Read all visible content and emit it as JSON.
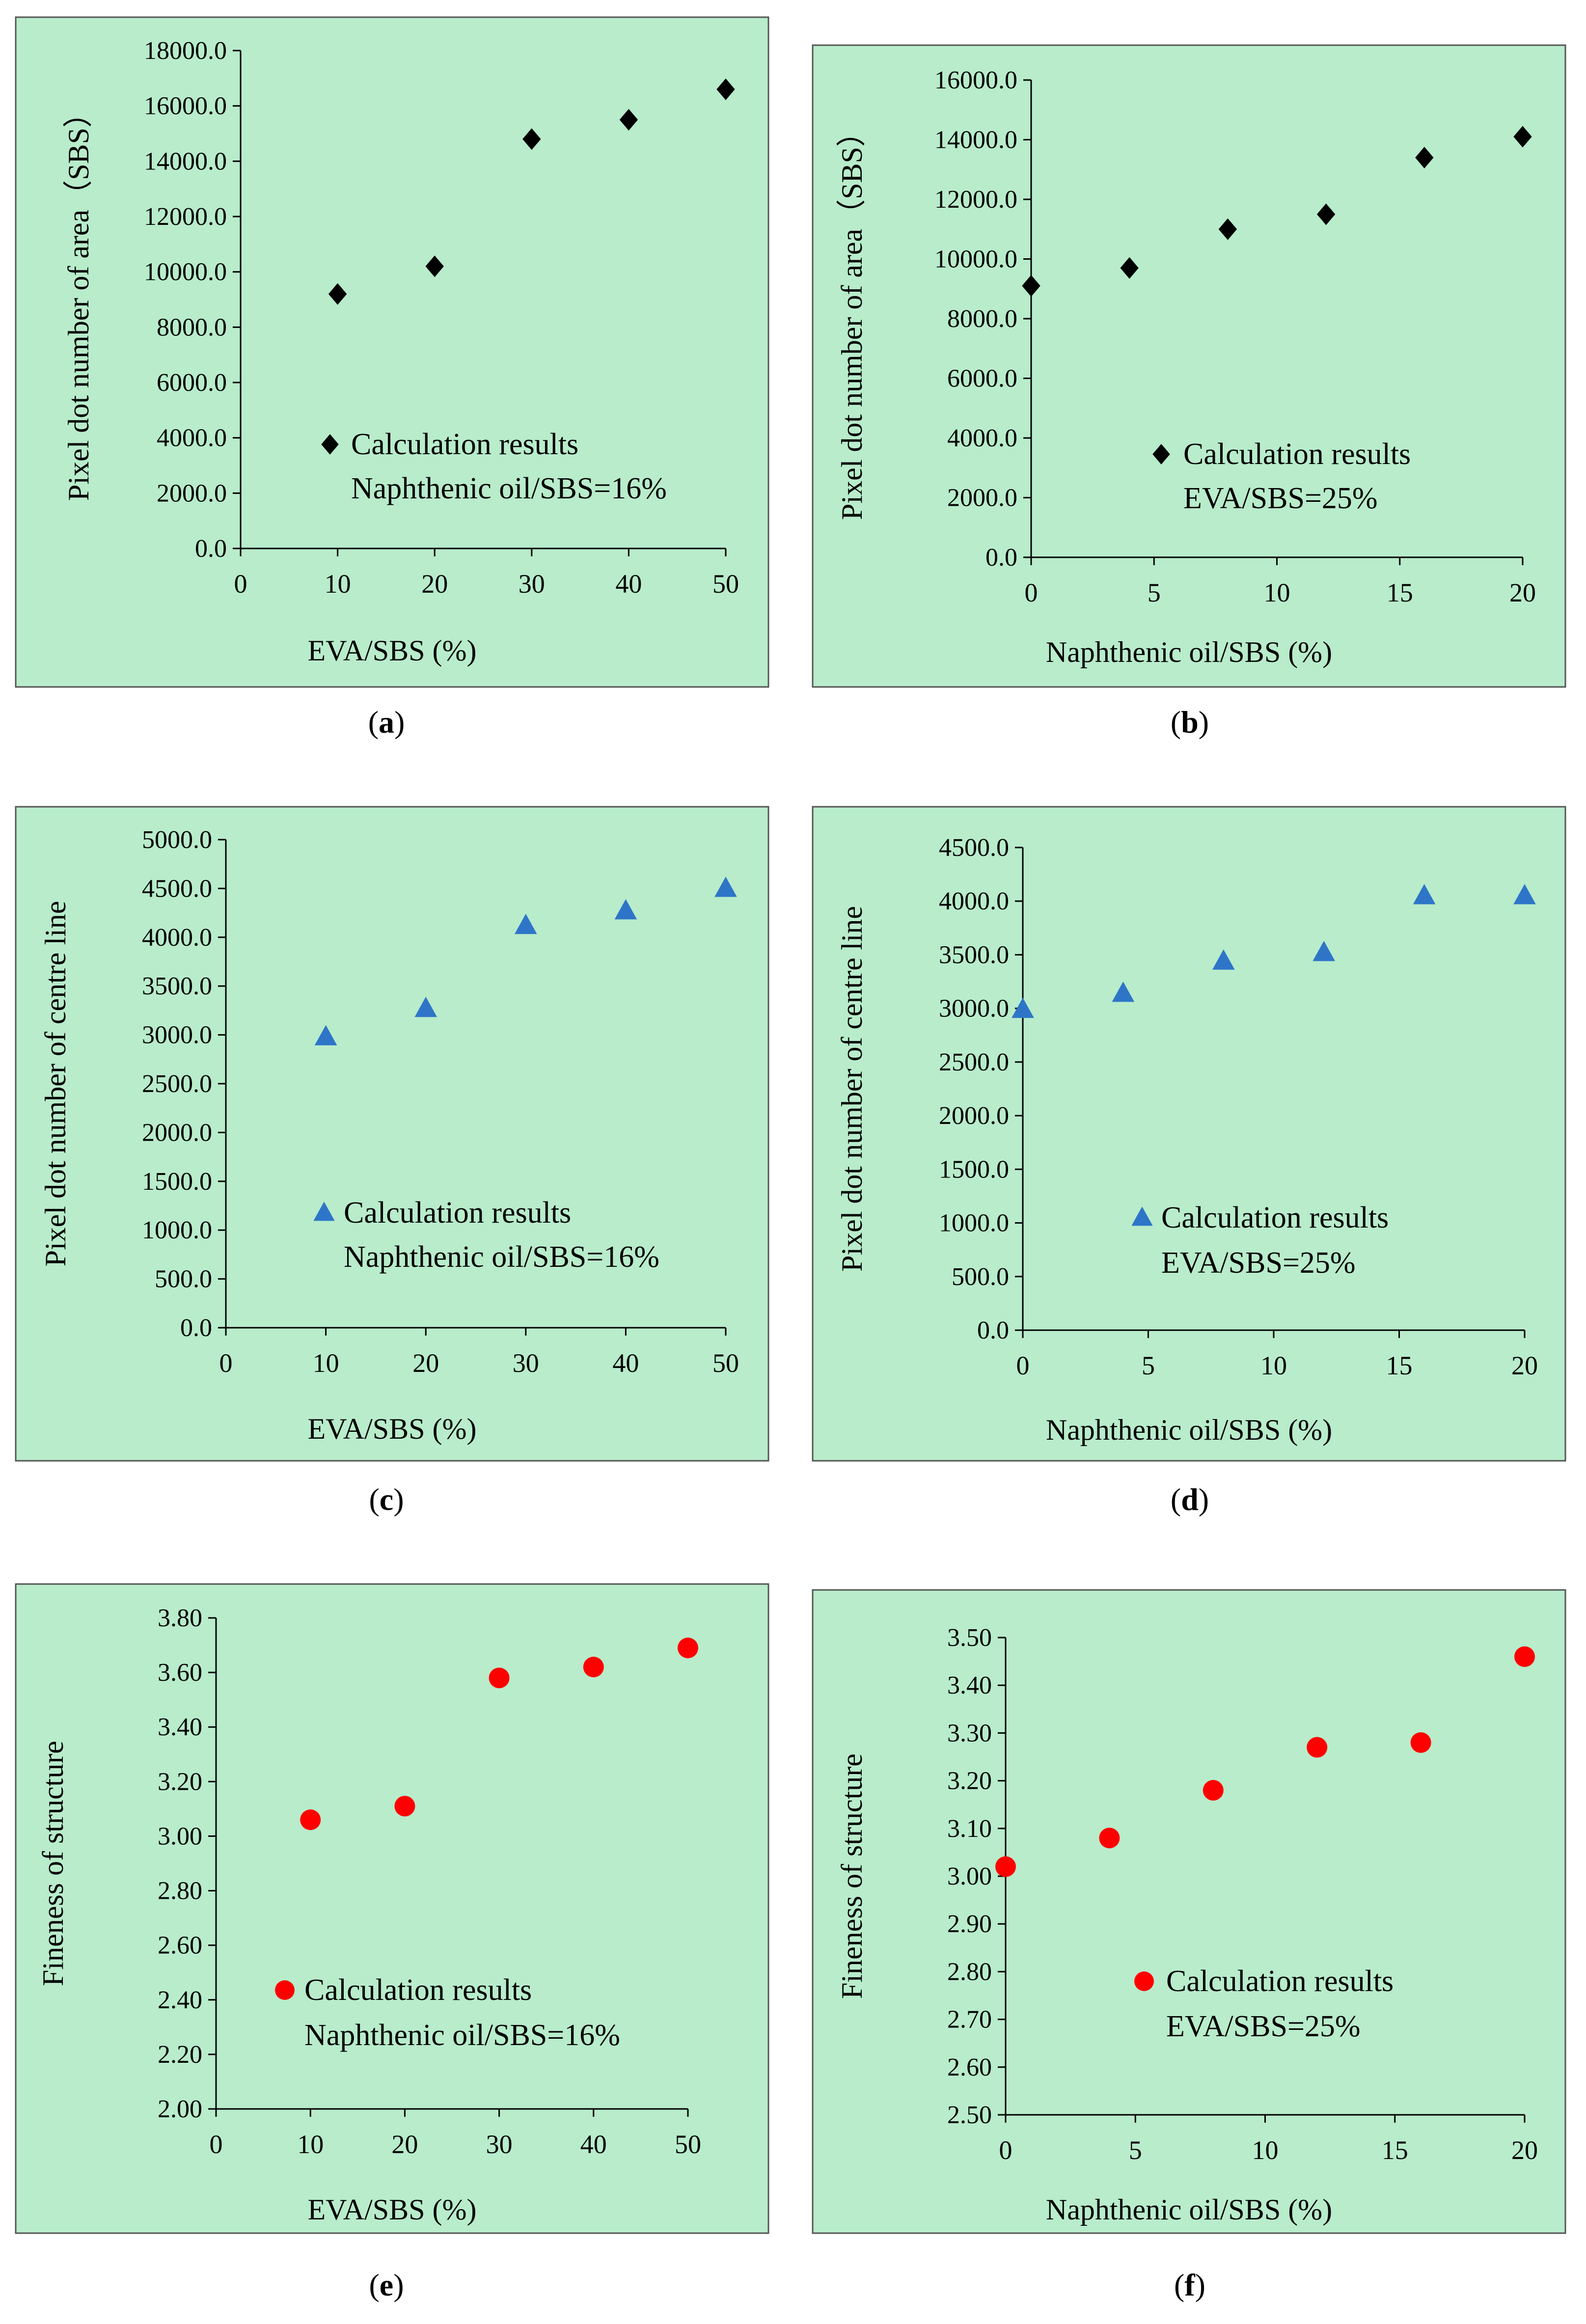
{
  "figure": {
    "panel_bg": "#b8eccb",
    "panel_border": "#555555",
    "axis_color": "#000000"
  },
  "chart_data": [
    {
      "id": "a",
      "type": "scatter",
      "caption": "a",
      "xlabel": "EVA/SBS (%)",
      "ylabel": "Pixel dot number of area（SBS）",
      "xlim": [
        0,
        50
      ],
      "ylim": [
        0,
        18000
      ],
      "xticks": [
        0,
        10,
        20,
        30,
        40,
        50
      ],
      "yticks": [
        0,
        2000,
        4000,
        6000,
        8000,
        10000,
        12000,
        14000,
        16000,
        18000
      ],
      "ytick_labels": [
        "0.0",
        "2000.0",
        "4000.0",
        "6000.0",
        "8000.0",
        "10000.0",
        "12000.0",
        "14000.0",
        "16000.0",
        "18000.0"
      ],
      "marker": "diamond",
      "color": "#000000",
      "legend_label": "Calculation results",
      "legend_note": "Naphthenic oil/SBS=16%",
      "series": [
        {
          "name": "Calculation results",
          "x": [
            10,
            20,
            30,
            40,
            50
          ],
          "y": [
            9200,
            10200,
            14800,
            15500,
            16600
          ]
        }
      ]
    },
    {
      "id": "b",
      "type": "scatter",
      "caption": "b",
      "xlabel": "Naphthenic oil/SBS (%)",
      "ylabel": "Pixel dot number of area（SBS）",
      "xlim": [
        0,
        20
      ],
      "ylim": [
        0,
        16000
      ],
      "xticks": [
        0,
        5,
        10,
        15,
        20
      ],
      "yticks": [
        0,
        2000,
        4000,
        6000,
        8000,
        10000,
        12000,
        14000,
        16000
      ],
      "ytick_labels": [
        "0.0",
        "2000.0",
        "4000.0",
        "6000.0",
        "8000.0",
        "10000.0",
        "12000.0",
        "14000.0",
        "16000.0"
      ],
      "marker": "diamond",
      "color": "#000000",
      "legend_label": "Calculation results",
      "legend_note": "EVA/SBS=25%",
      "series": [
        {
          "name": "Calculation results",
          "x": [
            0,
            4,
            8,
            12,
            16,
            20
          ],
          "y": [
            9100,
            9700,
            11000,
            11500,
            13400,
            14100
          ]
        }
      ]
    },
    {
      "id": "c",
      "type": "scatter",
      "caption": "c",
      "xlabel": "EVA/SBS (%)",
      "ylabel": "Pixel dot number of centre line",
      "xlim": [
        0,
        50
      ],
      "ylim": [
        0,
        5000
      ],
      "xticks": [
        0,
        10,
        20,
        30,
        40,
        50
      ],
      "yticks": [
        0,
        500,
        1000,
        1500,
        2000,
        2500,
        3000,
        3500,
        4000,
        4500,
        5000
      ],
      "ytick_labels": [
        "0.0",
        "500.0",
        "1000.0",
        "1500.0",
        "2000.0",
        "2500.0",
        "3000.0",
        "3500.0",
        "4000.0",
        "4500.0",
        "5000.0"
      ],
      "marker": "triangle",
      "color": "#2e75c8",
      "legend_label": "Calculation results",
      "legend_note": "Naphthenic oil/SBS=16%",
      "series": [
        {
          "name": "Calculation results",
          "x": [
            10,
            20,
            30,
            40,
            50
          ],
          "y": [
            2980,
            3270,
            4120,
            4270,
            4500
          ]
        }
      ]
    },
    {
      "id": "d",
      "type": "scatter",
      "caption": "d",
      "xlabel": "Naphthenic oil/SBS (%)",
      "ylabel": "Pixel dot number of centre line",
      "xlim": [
        0,
        20
      ],
      "ylim": [
        0,
        4500
      ],
      "xticks": [
        0,
        5,
        10,
        15,
        20
      ],
      "yticks": [
        0,
        500,
        1000,
        1500,
        2000,
        2500,
        3000,
        3500,
        4000,
        4500
      ],
      "ytick_labels": [
        "0.0",
        "500.0",
        "1000.0",
        "1500.0",
        "2000.0",
        "2500.0",
        "3000.0",
        "3500.0",
        "4000.0",
        "4500.0"
      ],
      "marker": "triangle",
      "color": "#2e75c8",
      "legend_label": "Calculation results",
      "legend_note": "EVA/SBS=25%",
      "series": [
        {
          "name": "Calculation results",
          "x": [
            0,
            4,
            8,
            12,
            16,
            20
          ],
          "y": [
            2990,
            3140,
            3440,
            3520,
            4050,
            4050
          ]
        }
      ]
    },
    {
      "id": "e",
      "type": "scatter",
      "caption": "e",
      "xlabel": "EVA/SBS (%)",
      "ylabel": "Fineness of structure",
      "xlim": [
        0,
        50
      ],
      "ylim": [
        2.0,
        3.8
      ],
      "xticks": [
        0,
        10,
        20,
        30,
        40,
        50
      ],
      "yticks": [
        2.0,
        2.2,
        2.4,
        2.6,
        2.8,
        3.0,
        3.2,
        3.4,
        3.6,
        3.8
      ],
      "ytick_labels": [
        "2.00",
        "2.20",
        "2.40",
        "2.60",
        "2.80",
        "3.00",
        "3.20",
        "3.40",
        "3.60",
        "3.80"
      ],
      "marker": "circle",
      "color": "#ff0000",
      "legend_label": "Calculation results",
      "legend_note": "Naphthenic oil/SBS=16%",
      "series": [
        {
          "name": "Calculation results",
          "x": [
            10,
            20,
            30,
            40,
            50
          ],
          "y": [
            3.06,
            3.11,
            3.58,
            3.62,
            3.69
          ]
        }
      ]
    },
    {
      "id": "f",
      "type": "scatter",
      "caption": "f",
      "xlabel": "Naphthenic oil/SBS (%)",
      "ylabel": "Fineness of structure",
      "xlim": [
        0,
        20
      ],
      "ylim": [
        2.5,
        3.5
      ],
      "xticks": [
        0,
        5,
        10,
        15,
        20
      ],
      "yticks": [
        2.5,
        2.6,
        2.7,
        2.8,
        2.9,
        3.0,
        3.1,
        3.2,
        3.3,
        3.4,
        3.5
      ],
      "ytick_labels": [
        "2.50",
        "2.60",
        "2.70",
        "2.80",
        "2.90",
        "3.00",
        "3.10",
        "3.20",
        "3.30",
        "3.40",
        "3.50"
      ],
      "marker": "circle",
      "color": "#ff0000",
      "legend_label": "Calculation results",
      "legend_note": "EVA/SBS=25%",
      "series": [
        {
          "name": "Calculation results",
          "x": [
            0,
            4,
            8,
            12,
            16,
            20
          ],
          "y": [
            3.02,
            3.08,
            3.18,
            3.27,
            3.28,
            3.46
          ]
        }
      ]
    }
  ]
}
